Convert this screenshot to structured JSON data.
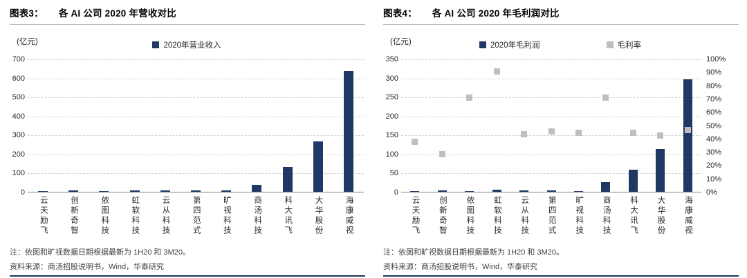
{
  "colors": {
    "bar_navy": "#1f3864",
    "marker_gray": "#bfbfbf",
    "rule_navy": "#17365d",
    "grid": "#d2d2d2",
    "axis": "#7f7f7f"
  },
  "panels": [
    {
      "title_prefix": "图表3：",
      "title": "各 AI 公司 2020 年营收对比",
      "unit": "(亿元)",
      "note": "注：依图和旷视数据日期根据最新为 1H20 和 3M20。",
      "source": "资料来源：商汤招股说明书，Wind，华泰研究"
    },
    {
      "title_prefix": "图表4：",
      "title": "各 AI 公司 2020 年毛利润对比",
      "unit": "(亿元)",
      "note": "注：依图和旷视数据日期根据最新为 1H20 和 3M20。",
      "source": "资料来源：商汤招股说明书，Wind，华泰研究"
    }
  ],
  "chart_data": [
    {
      "type": "bar",
      "title": "图表3： 各 AI 公司 2020 年营收对比",
      "unit": "(亿元)",
      "grid": "horizontal-dashed",
      "legend_position": "top-center",
      "categories": [
        "云天励飞",
        "创新奇智",
        "依图科技",
        "虹软科技",
        "云从科技",
        "第四范式",
        "旷视科技",
        "商汤科技",
        "科大讯飞",
        "大华股份",
        "海康威视"
      ],
      "yaxis_left": {
        "min": 0,
        "max": 700,
        "step": 100,
        "suffix": ""
      },
      "series": [
        {
          "name": "2020年营业收入",
          "type": "bar",
          "axis": "left",
          "color": "#1f3864",
          "values": [
            4,
            9,
            4,
            7,
            8,
            9,
            7,
            35,
            130,
            265,
            635
          ]
        }
      ]
    },
    {
      "type": "bar",
      "title": "图表4： 各 AI 公司 2020 年毛利润对比",
      "unit": "(亿元)",
      "grid": "horizontal-dashed",
      "legend_position": "top-center",
      "categories": [
        "云天励飞",
        "创新奇智",
        "依图科技",
        "虹软科技",
        "云从科技",
        "第四范式",
        "旷视科技",
        "商汤科技",
        "科大讯飞",
        "大华股份",
        "海康威视"
      ],
      "yaxis_left": {
        "min": 0,
        "max": 350,
        "step": 50,
        "suffix": ""
      },
      "yaxis_right": {
        "min": 0,
        "max": 100,
        "step": 10,
        "suffix": "%"
      },
      "series": [
        {
          "name": "2020年毛利润",
          "type": "bar",
          "axis": "left",
          "color": "#1f3864",
          "values": [
            1,
            3,
            2,
            6,
            3,
            4,
            1,
            25,
            58,
            113,
            295
          ]
        },
        {
          "name": "毛利率",
          "type": "scatter",
          "axis": "right",
          "color": "#bfbfbf",
          "values": [
            38,
            29,
            71,
            91,
            44,
            46,
            45,
            71,
            45,
            43,
            47
          ]
        }
      ]
    }
  ]
}
